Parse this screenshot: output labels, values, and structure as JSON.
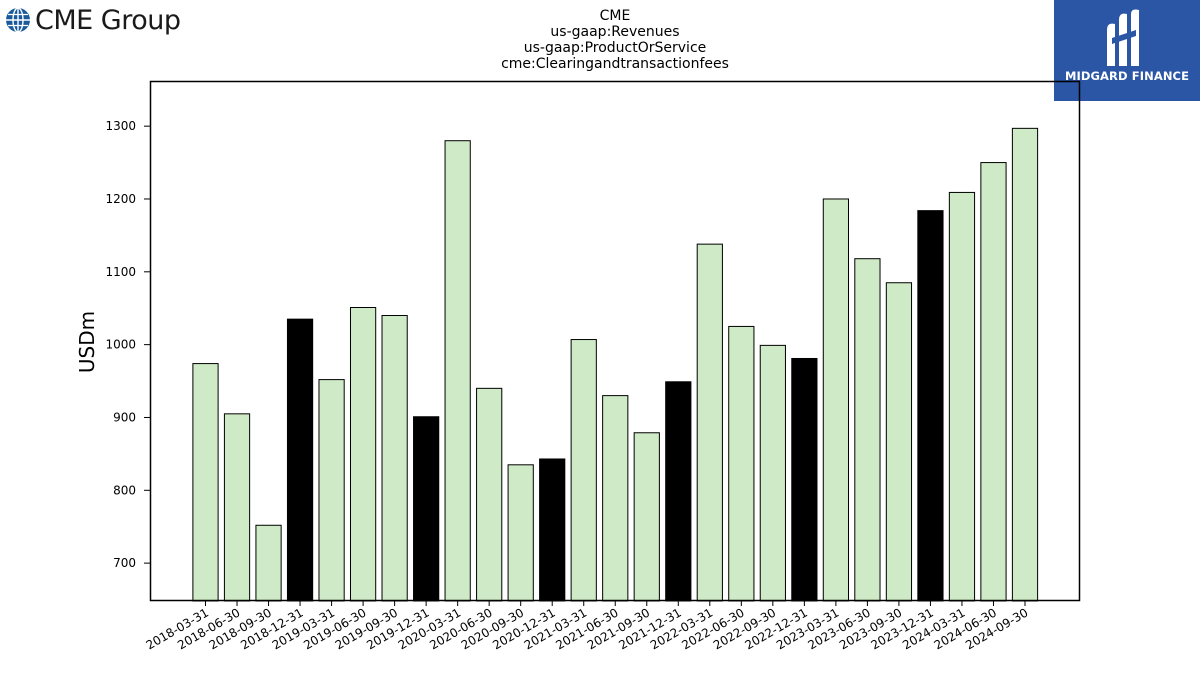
{
  "header": {
    "left_logo": {
      "text": "CME Group",
      "icon": "globe-icon",
      "color": "#1a5a9c"
    },
    "right_logo": {
      "text": "MIDGARD FINANCE",
      "icon": "midgard-mark-icon",
      "background": "#2b56a6"
    }
  },
  "chart_data": {
    "type": "bar",
    "title_lines": [
      "CME",
      "us-gaap:Revenues",
      "us-gaap:ProductOrService",
      "cme:Clearingandtransactionfees"
    ],
    "xlabel": "",
    "ylabel": "USDm",
    "ylim": [
      648,
      1362
    ],
    "yticks": [
      700,
      800,
      900,
      1000,
      1100,
      1200,
      1300
    ],
    "grid": false,
    "colors": {
      "quarter": "#cfeac6",
      "year_end": "#000000",
      "edge": "#000000"
    },
    "categories": [
      "2018-03-31",
      "2018-06-30",
      "2018-09-30",
      "2018-12-31",
      "2019-03-31",
      "2019-06-30",
      "2019-09-30",
      "2019-12-31",
      "2020-03-31",
      "2020-06-30",
      "2020-09-30",
      "2020-12-31",
      "2021-03-31",
      "2021-06-30",
      "2021-09-30",
      "2021-12-31",
      "2022-03-31",
      "2022-06-30",
      "2022-09-30",
      "2022-12-31",
      "2023-03-31",
      "2023-06-30",
      "2023-09-30",
      "2023-12-31",
      "2024-03-31",
      "2024-06-30",
      "2024-09-30"
    ],
    "values": [
      974,
      905,
      752,
      1035,
      952,
      1051,
      1040,
      901,
      1280,
      940,
      835,
      843,
      1007,
      930,
      879,
      949,
      1138,
      1025,
      999,
      981,
      1200,
      1118,
      1085,
      1184,
      1209,
      1250,
      1297
    ]
  }
}
